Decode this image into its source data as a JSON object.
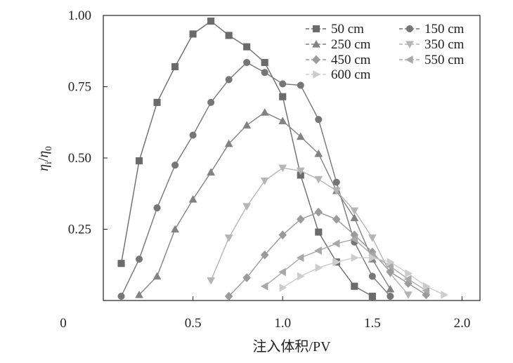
{
  "chart_data": {
    "type": "line",
    "title": "",
    "xlabel": "注入体积/PV",
    "ylabel_main": "η",
    "ylabel_sub1": "i",
    "ylabel_sep": "/",
    "ylabel_sub2": "0",
    "xlim": [
      0,
      2.1
    ],
    "ylim": [
      0,
      1.0
    ],
    "x_ticks": [
      {
        "value": 0,
        "label": "0"
      },
      {
        "value": 0.5,
        "label": "0.5"
      },
      {
        "value": 1.0,
        "label": "1.0"
      },
      {
        "value": 1.5,
        "label": "1.5"
      },
      {
        "value": 2.0,
        "label": "2.0"
      }
    ],
    "y_ticks": [
      {
        "value": 0.25,
        "label": "0.25"
      },
      {
        "value": 0.5,
        "label": "0.50"
      },
      {
        "value": 0.75,
        "label": "0.75"
      },
      {
        "value": 1.0,
        "label": "1.00"
      }
    ],
    "grid": false,
    "legend_position": "top-right",
    "series": [
      {
        "name": "50 cm",
        "marker": "square",
        "color": "#6b6b6b",
        "x": [
          0.1,
          0.2,
          0.3,
          0.4,
          0.5,
          0.6,
          0.7,
          0.8,
          0.9,
          1.0,
          1.1,
          1.2,
          1.3,
          1.4,
          1.5
        ],
        "y": [
          0.13,
          0.49,
          0.695,
          0.82,
          0.935,
          0.98,
          0.93,
          0.89,
          0.835,
          0.715,
          0.44,
          0.24,
          0.135,
          0.05,
          0.015
        ]
      },
      {
        "name": "150 cm",
        "marker": "circle",
        "color": "#767676",
        "x": [
          0.1,
          0.2,
          0.3,
          0.4,
          0.5,
          0.6,
          0.7,
          0.8,
          0.9,
          1.0,
          1.1,
          1.2,
          1.3,
          1.4,
          1.5,
          1.6
        ],
        "y": [
          0.015,
          0.145,
          0.325,
          0.475,
          0.58,
          0.695,
          0.775,
          0.835,
          0.8,
          0.76,
          0.755,
          0.635,
          0.415,
          0.205,
          0.085,
          0.015
        ]
      },
      {
        "name": "250 cm",
        "marker": "triangle-up",
        "color": "#828282",
        "x": [
          0.2,
          0.3,
          0.4,
          0.5,
          0.6,
          0.7,
          0.8,
          0.9,
          1.0,
          1.1,
          1.2,
          1.3,
          1.4,
          1.5,
          1.6
        ],
        "y": [
          0.02,
          0.085,
          0.25,
          0.355,
          0.45,
          0.55,
          0.615,
          0.66,
          0.63,
          0.575,
          0.515,
          0.385,
          0.29,
          0.145,
          0.04
        ]
      },
      {
        "name": "350 cm",
        "marker": "triangle-down",
        "color": "#b5b5b5",
        "x": [
          0.6,
          0.7,
          0.8,
          0.9,
          1.0,
          1.1,
          1.2,
          1.3,
          1.4,
          1.5,
          1.6,
          1.7
        ],
        "y": [
          0.07,
          0.22,
          0.33,
          0.42,
          0.465,
          0.455,
          0.425,
          0.385,
          0.315,
          0.22,
          0.095,
          0.02
        ]
      },
      {
        "name": "450 cm",
        "marker": "diamond",
        "color": "#9a9a9a",
        "x": [
          0.7,
          0.8,
          0.9,
          1.0,
          1.1,
          1.2,
          1.3,
          1.4,
          1.5,
          1.6,
          1.7,
          1.8
        ],
        "y": [
          0.015,
          0.08,
          0.16,
          0.23,
          0.285,
          0.31,
          0.285,
          0.23,
          0.17,
          0.1,
          0.06,
          0.02
        ]
      },
      {
        "name": "550 cm",
        "marker": "triangle-left",
        "color": "#a8a8a8",
        "x": [
          0.9,
          1.0,
          1.1,
          1.2,
          1.3,
          1.4,
          1.5,
          1.6,
          1.7,
          1.8
        ],
        "y": [
          0.05,
          0.1,
          0.15,
          0.175,
          0.2,
          0.215,
          0.16,
          0.12,
          0.075,
          0.035
        ]
      },
      {
        "name": "600 cm",
        "marker": "triangle-right",
        "color": "#cccccc",
        "x": [
          1.0,
          1.1,
          1.2,
          1.3,
          1.4,
          1.5,
          1.6,
          1.7,
          1.8,
          1.9
        ],
        "y": [
          0.045,
          0.085,
          0.115,
          0.135,
          0.15,
          0.15,
          0.135,
          0.095,
          0.05,
          0.02
        ]
      }
    ]
  }
}
